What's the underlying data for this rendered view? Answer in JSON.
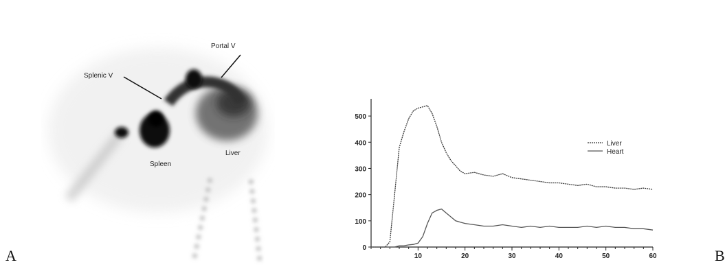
{
  "panel_a": {
    "letter": "A",
    "labels": {
      "portal": "Portal V",
      "splenic": "Splenic V",
      "spleen": "Spleen",
      "liver": "Liver"
    }
  },
  "panel_b": {
    "letter": "B"
  },
  "chart_data": {
    "type": "line",
    "title": "",
    "xlabel": "",
    "ylabel": "",
    "xlim": [
      0,
      60
    ],
    "ylim": [
      0,
      550
    ],
    "x_ticks": [
      10,
      20,
      30,
      40,
      50,
      60
    ],
    "y_ticks": [
      0,
      100,
      200,
      300,
      400,
      500
    ],
    "legend_position": "right",
    "x": [
      0,
      2,
      3,
      4,
      5,
      6,
      7,
      8,
      9,
      10,
      11,
      12,
      13,
      14,
      15,
      16,
      17,
      18,
      19,
      20,
      22,
      24,
      26,
      28,
      30,
      32,
      34,
      36,
      38,
      40,
      42,
      44,
      46,
      48,
      50,
      52,
      54,
      56,
      58,
      60
    ],
    "series": [
      {
        "name": "Liver",
        "color": "#333333",
        "values": [
          0,
          0,
          0,
          20,
          200,
          380,
          440,
          490,
          520,
          530,
          535,
          540,
          510,
          460,
          400,
          360,
          330,
          310,
          290,
          280,
          285,
          275,
          270,
          280,
          265,
          260,
          255,
          250,
          245,
          245,
          240,
          235,
          240,
          230,
          230,
          225,
          225,
          220,
          225,
          220
        ]
      },
      {
        "name": "Heart",
        "color": "#555555",
        "values": [
          0,
          0,
          0,
          0,
          0,
          5,
          5,
          8,
          10,
          15,
          40,
          90,
          130,
          140,
          145,
          130,
          115,
          100,
          95,
          90,
          85,
          80,
          80,
          85,
          80,
          75,
          80,
          75,
          80,
          75,
          75,
          75,
          80,
          75,
          80,
          75,
          75,
          70,
          70,
          65
        ]
      }
    ]
  }
}
